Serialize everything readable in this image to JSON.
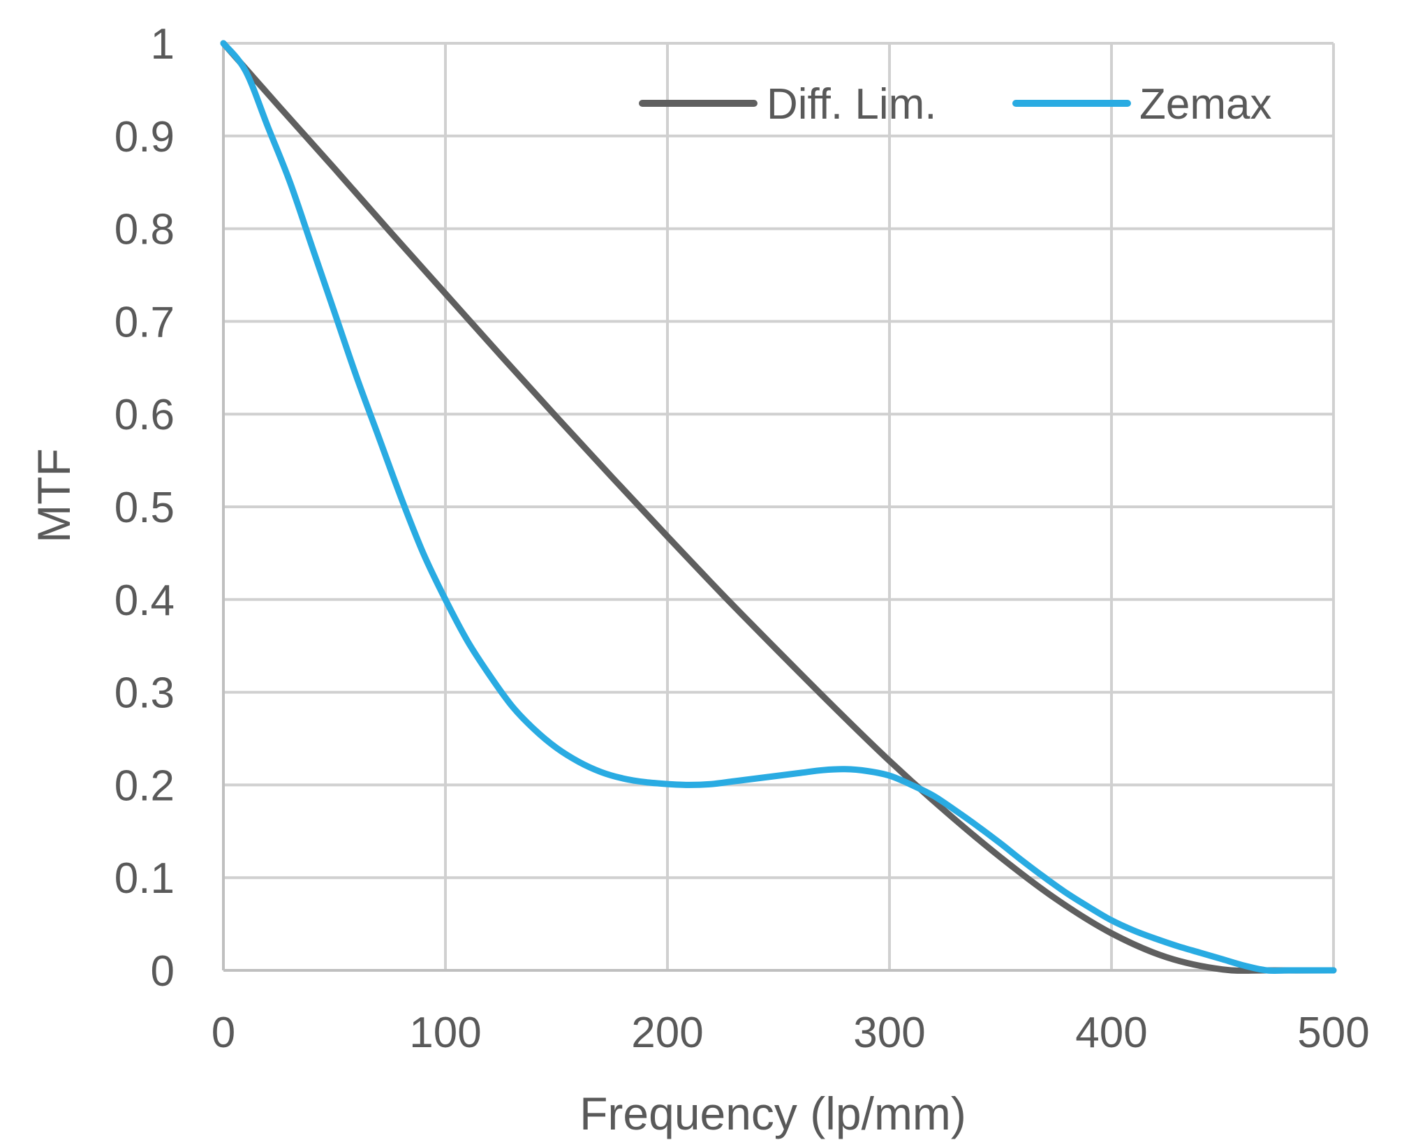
{
  "chart_data": {
    "type": "line",
    "title": "",
    "xlabel": "Frequency (lp/mm)",
    "ylabel": "MTF",
    "xlim": [
      0,
      500
    ],
    "ylim": [
      0,
      1
    ],
    "xticks": [
      0,
      100,
      200,
      300,
      400,
      500
    ],
    "yticks": [
      0,
      0.1,
      0.2,
      0.3,
      0.4,
      0.5,
      0.6,
      0.7,
      0.8,
      0.9,
      1
    ],
    "xtick_labels": [
      "0",
      "100",
      "200",
      "300",
      "400",
      "500"
    ],
    "ytick_labels": [
      "0",
      "0.1",
      "0.2",
      "0.3",
      "0.4",
      "0.5",
      "0.6",
      "0.7",
      "0.8",
      "0.9",
      "1"
    ],
    "grid": true,
    "legend_position": "top-right",
    "series": [
      {
        "name": "Diff. Lim.",
        "color": "#5f5f5f",
        "x": [
          0,
          25,
          50,
          75,
          100,
          125,
          150,
          175,
          200,
          225,
          250,
          275,
          300,
          325,
          350,
          375,
          400,
          425,
          450,
          470,
          500
        ],
        "y": [
          1.0,
          0.932,
          0.865,
          0.797,
          0.73,
          0.663,
          0.597,
          0.532,
          0.468,
          0.405,
          0.344,
          0.284,
          0.226,
          0.172,
          0.122,
          0.077,
          0.04,
          0.014,
          0.001,
          0.0,
          0.0
        ]
      },
      {
        "name": "Zemax",
        "color": "#29abe2",
        "x": [
          0,
          10,
          20,
          30,
          40,
          50,
          60,
          70,
          80,
          90,
          100,
          110,
          120,
          130,
          140,
          150,
          160,
          170,
          180,
          190,
          200,
          210,
          220,
          230,
          240,
          250,
          260,
          270,
          280,
          290,
          300,
          310,
          320,
          330,
          340,
          350,
          360,
          370,
          380,
          390,
          400,
          410,
          420,
          430,
          440,
          450,
          460,
          470,
          480,
          490,
          500
        ],
        "y": [
          1.0,
          0.97,
          0.91,
          0.85,
          0.78,
          0.71,
          0.64,
          0.575,
          0.51,
          0.45,
          0.4,
          0.355,
          0.318,
          0.285,
          0.26,
          0.24,
          0.225,
          0.214,
          0.207,
          0.203,
          0.201,
          0.2,
          0.201,
          0.204,
          0.207,
          0.21,
          0.213,
          0.216,
          0.217,
          0.215,
          0.21,
          0.2,
          0.188,
          0.172,
          0.155,
          0.137,
          0.118,
          0.1,
          0.083,
          0.068,
          0.054,
          0.043,
          0.034,
          0.026,
          0.019,
          0.012,
          0.005,
          0.0,
          0.0,
          0.0,
          0.0
        ]
      }
    ]
  }
}
